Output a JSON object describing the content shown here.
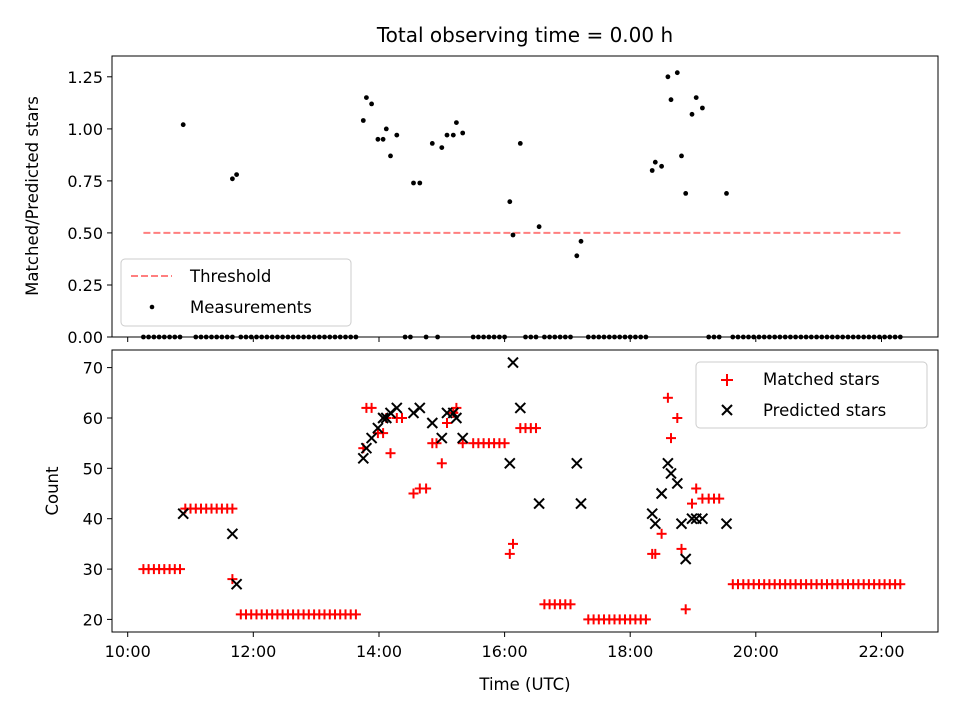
{
  "chart_data": [
    {
      "type": "scatter",
      "title": "Total observing time = 0.00 h",
      "xlabel": "",
      "ylabel": "Matched/Predicted stars",
      "xlim": [
        "09:45",
        "22:54"
      ],
      "ylim": [
        0,
        1.35
      ],
      "yticks": [
        "0.00",
        "0.25",
        "0.50",
        "0.75",
        "1.00",
        "1.25"
      ],
      "grid": false,
      "legend_position": "lower-left",
      "colors": {
        "threshold": "#ff7f7f",
        "measurements": "#000000"
      },
      "threshold": {
        "name": "Threshold",
        "value": 0.5,
        "x_start": "10:15",
        "x_end": "22:20"
      },
      "measurements": {
        "name": "Measurements",
        "nonzero_points": [
          [
            "10:53",
            1.02
          ],
          [
            "11:40",
            0.76
          ],
          [
            "11:44",
            0.78
          ],
          [
            "13:45",
            1.04
          ],
          [
            "13:48",
            1.15
          ],
          [
            "13:53",
            1.12
          ],
          [
            "13:59",
            0.95
          ],
          [
            "14:04",
            0.95
          ],
          [
            "14:07",
            1.0
          ],
          [
            "14:11",
            0.87
          ],
          [
            "14:17",
            0.97
          ],
          [
            "14:33",
            0.74
          ],
          [
            "14:39",
            0.74
          ],
          [
            "14:51",
            0.93
          ],
          [
            "15:00",
            0.91
          ],
          [
            "15:05",
            0.97
          ],
          [
            "15:11",
            0.97
          ],
          [
            "15:14",
            1.03
          ],
          [
            "15:20",
            0.98
          ],
          [
            "16:05",
            0.65
          ],
          [
            "16:08",
            0.49
          ],
          [
            "16:15",
            0.93
          ],
          [
            "16:33",
            0.53
          ],
          [
            "17:09",
            0.39
          ],
          [
            "17:13",
            0.46
          ],
          [
            "18:21",
            0.8
          ],
          [
            "18:24",
            0.84
          ],
          [
            "18:30",
            0.82
          ],
          [
            "18:36",
            1.25
          ],
          [
            "18:39",
            1.14
          ],
          [
            "18:45",
            1.27
          ],
          [
            "18:49",
            0.87
          ],
          [
            "18:53",
            0.69
          ],
          [
            "18:59",
            1.07
          ],
          [
            "19:03",
            1.15
          ],
          [
            "19:09",
            1.1
          ],
          [
            "19:32",
            0.69
          ]
        ],
        "zero_segments": [
          [
            "10:15",
            "10:50"
          ],
          [
            "11:05",
            "11:40"
          ],
          [
            "11:48",
            "13:38"
          ],
          [
            "14:25",
            "14:30"
          ],
          [
            "14:45",
            "14:48"
          ],
          [
            "14:56",
            "14:58"
          ],
          [
            "15:30",
            "16:02"
          ],
          [
            "16:20",
            "16:31"
          ],
          [
            "16:38",
            "17:05"
          ],
          [
            "17:20",
            "18:15"
          ],
          [
            "19:15",
            "19:28"
          ],
          [
            "19:38",
            "22:20"
          ]
        ]
      }
    },
    {
      "type": "scatter",
      "title": "",
      "xlabel": "Time (UTC)",
      "ylabel": "Count",
      "xlim": [
        "09:45",
        "22:54"
      ],
      "ylim": [
        17.5,
        73.5
      ],
      "yticks": [
        "20",
        "30",
        "40",
        "50",
        "60",
        "70"
      ],
      "xticks": [
        "10:00",
        "12:00",
        "14:00",
        "16:00",
        "18:00",
        "20:00",
        "22:00"
      ],
      "grid": false,
      "legend_position": "top-right",
      "colors": {
        "matched": "#ff0000",
        "predicted": "#000000"
      },
      "series": [
        {
          "name": "Matched stars",
          "marker": "plus",
          "segments": [
            [
              "10:15",
              "10:50",
              30
            ],
            [
              "10:55",
              "11:40",
              42
            ],
            [
              "11:48",
              "13:38",
              21
            ],
            [
              "15:30",
              "16:02",
              55
            ],
            [
              "16:20",
              "16:31",
              58
            ],
            [
              "16:38",
              "17:05",
              23
            ],
            [
              "17:20",
              "18:15",
              20
            ],
            [
              "19:15",
              "19:28",
              44
            ],
            [
              "19:38",
              "22:20",
              27
            ]
          ],
          "points": [
            [
              "11:40",
              28
            ],
            [
              "13:45",
              54
            ],
            [
              "13:48",
              62
            ],
            [
              "13:53",
              62
            ],
            [
              "13:59",
              57
            ],
            [
              "14:04",
              57
            ],
            [
              "14:07",
              60
            ],
            [
              "14:11",
              53
            ],
            [
              "14:17",
              60
            ],
            [
              "14:22",
              60
            ],
            [
              "14:33",
              45
            ],
            [
              "14:39",
              46
            ],
            [
              "14:45",
              46
            ],
            [
              "14:51",
              55
            ],
            [
              "14:55",
              55
            ],
            [
              "15:00",
              51
            ],
            [
              "15:05",
              59
            ],
            [
              "15:11",
              61
            ],
            [
              "15:14",
              62
            ],
            [
              "15:20",
              55
            ],
            [
              "16:05",
              33
            ],
            [
              "16:08",
              35
            ],
            [
              "16:15",
              58
            ],
            [
              "18:21",
              33
            ],
            [
              "18:24",
              33
            ],
            [
              "18:30",
              37
            ],
            [
              "18:36",
              64
            ],
            [
              "18:39",
              56
            ],
            [
              "18:45",
              60
            ],
            [
              "18:49",
              34
            ],
            [
              "18:53",
              22
            ],
            [
              "18:59",
              43
            ],
            [
              "19:03",
              46
            ],
            [
              "19:09",
              44
            ]
          ]
        },
        {
          "name": "Predicted stars",
          "marker": "x",
          "points": [
            [
              "10:53",
              41
            ],
            [
              "11:40",
              37
            ],
            [
              "11:44",
              27
            ],
            [
              "13:45",
              52
            ],
            [
              "13:48",
              54
            ],
            [
              "13:53",
              56
            ],
            [
              "13:59",
              58
            ],
            [
              "14:04",
              60
            ],
            [
              "14:07",
              60
            ],
            [
              "14:11",
              61
            ],
            [
              "14:17",
              62
            ],
            [
              "14:33",
              61
            ],
            [
              "14:39",
              62
            ],
            [
              "14:51",
              59
            ],
            [
              "15:00",
              56
            ],
            [
              "15:05",
              61
            ],
            [
              "15:11",
              61
            ],
            [
              "15:14",
              60
            ],
            [
              "15:20",
              56
            ],
            [
              "16:05",
              51
            ],
            [
              "16:08",
              71
            ],
            [
              "16:15",
              62
            ],
            [
              "16:33",
              43
            ],
            [
              "17:09",
              51
            ],
            [
              "17:13",
              43
            ],
            [
              "18:21",
              41
            ],
            [
              "18:24",
              39
            ],
            [
              "18:30",
              45
            ],
            [
              "18:36",
              51
            ],
            [
              "18:39",
              49
            ],
            [
              "18:45",
              47
            ],
            [
              "18:49",
              39
            ],
            [
              "18:53",
              32
            ],
            [
              "18:59",
              40
            ],
            [
              "19:03",
              40
            ],
            [
              "19:09",
              40
            ],
            [
              "19:32",
              39
            ]
          ]
        }
      ]
    }
  ]
}
